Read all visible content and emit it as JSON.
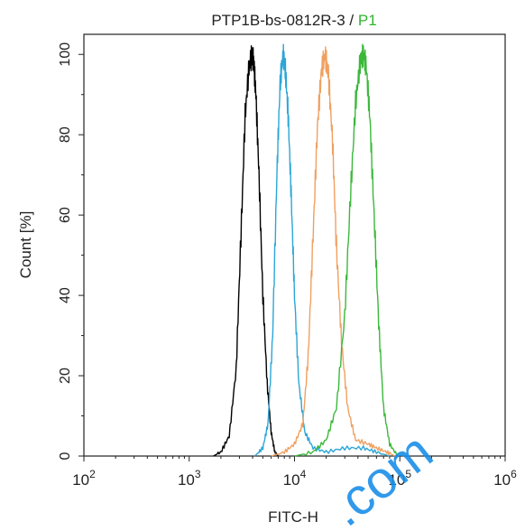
{
  "title": {
    "sample": "PTP1B-bs-0812R-3",
    "separator": " / ",
    "gate": "P1",
    "gate_color": "#2db52d"
  },
  "watermark": ".com",
  "watermark_color": "#1a8fe8",
  "chart_data": {
    "type": "line",
    "xlabel": "FITC-H",
    "ylabel": "Count  [%]",
    "x_scale": "log",
    "xlim": [
      100,
      1000000
    ],
    "ylim": [
      0,
      105
    ],
    "x_ticks": [
      {
        "base": "10",
        "exp": "2"
      },
      {
        "base": "10",
        "exp": "3"
      },
      {
        "base": "10",
        "exp": "4"
      },
      {
        "base": "10",
        "exp": "5"
      },
      {
        "base": "10",
        "exp": "6"
      }
    ],
    "y_ticks": [
      "0",
      "20",
      "40",
      "60",
      "80",
      "100"
    ],
    "y_tick_values": [
      0,
      20,
      40,
      60,
      80,
      100
    ],
    "series": [
      {
        "color": "#000000",
        "x": [
          1700,
          2000,
          2400,
          2800,
          3100,
          3400,
          3700,
          3950,
          4100,
          4300,
          4600,
          5000,
          5500,
          6000,
          6500,
          7000
        ],
        "y": [
          0,
          1,
          5,
          22,
          55,
          85,
          97,
          100,
          98,
          90,
          70,
          40,
          18,
          6,
          1,
          0
        ]
      },
      {
        "color": "#2ca6d6",
        "x": [
          4200,
          5000,
          5600,
          6200,
          6800,
          7300,
          7800,
          8200,
          8700,
          9300,
          10000,
          11000,
          12500,
          15000,
          20000,
          30000,
          45000,
          60000,
          80000
        ],
        "y": [
          0,
          2,
          8,
          30,
          70,
          93,
          100,
          96,
          85,
          65,
          40,
          18,
          6,
          2,
          1,
          2,
          2,
          1,
          0
        ]
      },
      {
        "color": "#f0a060",
        "x": [
          6000,
          8000,
          10000,
          12000,
          13500,
          15000,
          16500,
          18000,
          19500,
          21000,
          23000,
          25000,
          28000,
          32000,
          38000,
          50000,
          60000,
          75000,
          90000
        ],
        "y": [
          0,
          1,
          3,
          8,
          25,
          55,
          82,
          96,
          100,
          95,
          78,
          52,
          28,
          12,
          4,
          3,
          2,
          1,
          0
        ]
      },
      {
        "color": "#3bb83b",
        "x": [
          10000,
          15000,
          20000,
          25000,
          30000,
          34000,
          38000,
          42000,
          45000,
          48000,
          52000,
          57000,
          63000,
          70000,
          80000,
          95000
        ],
        "y": [
          0,
          1,
          4,
          12,
          35,
          65,
          88,
          98,
          100,
          97,
          84,
          60,
          33,
          12,
          3,
          0
        ]
      }
    ]
  }
}
